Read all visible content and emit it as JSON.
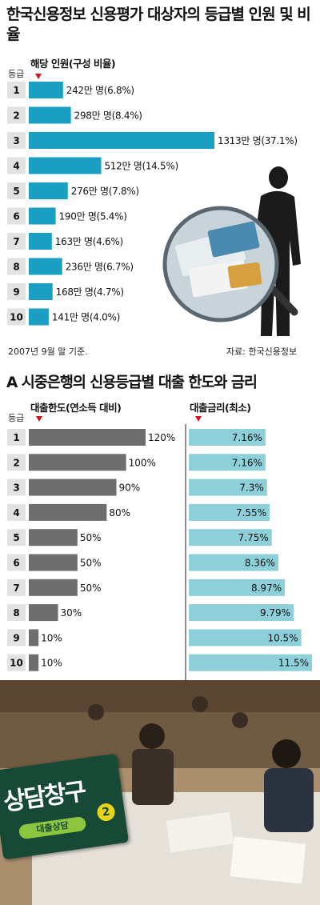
{
  "title1": "한국신용정보 신용평가 대상자의 등급별 인원 및 비율",
  "chart_data": [
    {
      "type": "bar",
      "title": "한국신용정보 신용평가 대상자의 등급별 인원 및 비율",
      "grade_label": "등급",
      "header": "해당 인원(구성 비율)",
      "categories": [
        "1",
        "2",
        "3",
        "4",
        "5",
        "6",
        "7",
        "8",
        "9",
        "10"
      ],
      "values": [
        242,
        298,
        1313,
        512,
        276,
        190,
        163,
        236,
        168,
        141
      ],
      "labels": [
        "242만 명(6.8%)",
        "298만 명(8.4%)",
        "1313만 명(37.1%)",
        "512만 명(14.5%)",
        "276만 명(7.8%)",
        "190만 명(5.4%)",
        "163만 명(4.6%)",
        "236만 명(6.7%)",
        "168만 명(4.7%)",
        "141만 명(4.0%)"
      ],
      "color": "#1a9fc2",
      "note": "2007년 9월 말 기준.",
      "source": "자료: 한국신용정보"
    },
    {
      "type": "bar",
      "title": "A 시중은행의 신용등급별 대출 한도와 금리",
      "grade_label": "등급",
      "series": [
        {
          "name": "대출한도(연소득 대비)",
          "values": [
            120,
            100,
            90,
            80,
            50,
            50,
            50,
            30,
            10,
            10
          ],
          "labels": [
            "120%",
            "100%",
            "90%",
            "80%",
            "50%",
            "50%",
            "50%",
            "30%",
            "10%",
            "10%"
          ],
          "color": "#6e6e6e"
        },
        {
          "name": "대출금리(최소)",
          "values": [
            7.16,
            7.16,
            7.3,
            7.55,
            7.75,
            8.36,
            8.97,
            9.79,
            10.5,
            11.5
          ],
          "labels": [
            "7.16%",
            "7.16%",
            "7.3%",
            "7.55%",
            "7.75%",
            "8.36%",
            "8.97%",
            "9.79%",
            "10.5%",
            "11.5%"
          ],
          "color": "#8ed0da"
        }
      ],
      "categories": [
        "1",
        "2",
        "3",
        "4",
        "5",
        "6",
        "7",
        "8",
        "9",
        "10"
      ]
    }
  ],
  "photo": {
    "sign_text": "상담창구",
    "sign_sub": "대출상담",
    "sign_num": "2"
  }
}
